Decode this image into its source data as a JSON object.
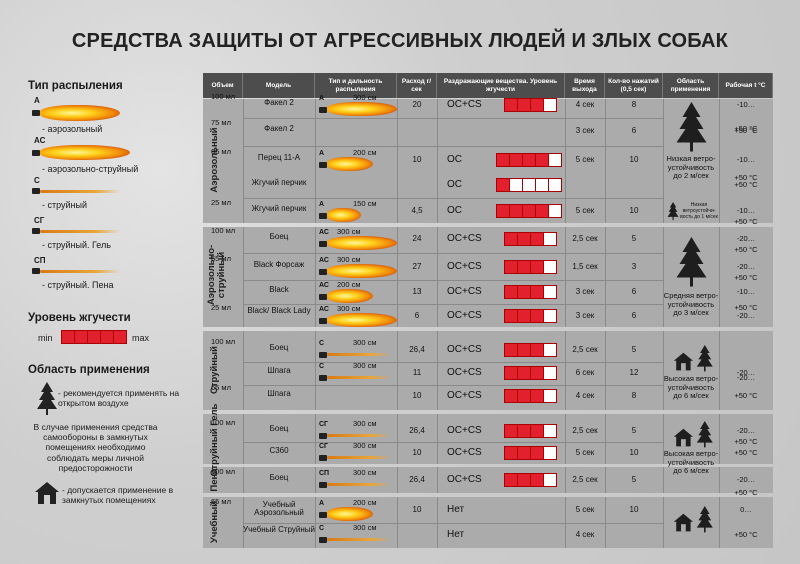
{
  "title": "СРЕДСТВА ЗАЩИТЫ ОТ АГРЕССИВНЫХ ЛЮДЕЙ И ЗЛЫХ СОБАК",
  "legend": {
    "spray_heading": "Тип распыления",
    "types": [
      {
        "code": "А",
        "label": "- аэрозольный"
      },
      {
        "code": "АС",
        "label": "- аэрозольно-струйный"
      },
      {
        "code": "С",
        "label": "- струйный"
      },
      {
        "code": "СГ",
        "label": "- струйный. Гель"
      },
      {
        "code": "СП",
        "label": "- струйный. Пена"
      }
    ],
    "intensity_heading": "Уровень жгучести",
    "min": "min",
    "max": "max",
    "area_heading": "Область применения",
    "outdoor": "- рекомендуется применять на открытом воздухе",
    "indoor_warning": "В случае применения средства самообороны в замкнутых помещениях необходимо соблюдать меры личной предосторожности",
    "indoor": "- допускается применение в замкнутых помещениях"
  },
  "headers": [
    "Объем",
    "Модель",
    "Тип и дальность распыления",
    "Расход г/сек",
    "Раздражающие вещества. Уровень жгучести",
    "Время выхода",
    "Кол-во нажатий (0,5 сек)",
    "Область применения",
    "Рабочая t °C"
  ],
  "groups": [
    {
      "name": "Аэрозольный"
    },
    {
      "name": "Аэрозольно-струйный"
    },
    {
      "name": "Струйный"
    },
    {
      "name": "Струйный Гель"
    },
    {
      "name": "Пена"
    },
    {
      "name": "Учебный"
    }
  ],
  "rows": [
    {
      "vol": "100 мл",
      "model": "Факел 2",
      "code": "А",
      "dist": "300 см",
      "rate": "20",
      "chem": "ОС+CS",
      "level": 3,
      "time": "4 сек",
      "presses": "8",
      "temp": "-10…"
    },
    {
      "vol": "75 мл",
      "model": "Факел 2",
      "code": "",
      "dist": "",
      "rate": "",
      "chem": "",
      "level": 0,
      "time": "3 сек",
      "presses": "6",
      "temp": "+50 °C"
    },
    {
      "vol": "65 мл",
      "model": "Перец 11-А",
      "code": "А",
      "dist": "200 см",
      "rate": "10",
      "chem": "ОС",
      "level": 4,
      "time": "5 сек",
      "presses": "10",
      "temp": "-10…"
    },
    {
      "vol": "",
      "model": "Жгучий перчик",
      "code": "",
      "dist": "",
      "rate": "",
      "chem": "ОС",
      "level": 1,
      "time": "",
      "presses": "",
      "temp": "+50 °C"
    },
    {
      "vol": "25 мл",
      "model": "Жгучий перчик",
      "code": "А",
      "dist": "150 см",
      "rate": "4,5",
      "chem": "ОС",
      "level": 4,
      "time": "5 сек",
      "presses": "10",
      "temp": "-10…"
    },
    {
      "vol": "100 мл",
      "model": "Боец",
      "code": "АС",
      "dist": "300 см",
      "rate": "24",
      "chem": "ОС+CS",
      "level": 3,
      "time": "2,5 сек",
      "presses": "5",
      "temp": "-20…"
    },
    {
      "vol": "65 мл",
      "model": "Black Форсаж",
      "code": "АС",
      "dist": "300 см",
      "rate": "27",
      "chem": "ОС+CS",
      "level": 3,
      "time": "1,5 сек",
      "presses": "3",
      "temp": "-20…"
    },
    {
      "vol": "",
      "model": "Black",
      "code": "АС",
      "dist": "200 см",
      "rate": "13",
      "chem": "ОС+CS",
      "level": 3,
      "time": "3 сек",
      "presses": "6",
      "temp": "-10…"
    },
    {
      "vol": "25 мл",
      "model": "Black/ Black Lady",
      "code": "АС",
      "dist": "300 см",
      "rate": "6",
      "chem": "ОС+CS",
      "level": 3,
      "time": "3 сек",
      "presses": "6",
      "temp": "-20…"
    },
    {
      "vol": "100 мл",
      "model": "Боец",
      "code": "С",
      "dist": "300 см",
      "rate": "26,4",
      "chem": "ОС+CS",
      "level": 3,
      "time": "2,5 сек",
      "presses": "5",
      "temp": ""
    },
    {
      "vol": "",
      "model": "Шпага",
      "code": "С",
      "dist": "300 см",
      "rate": "11",
      "chem": "ОС+CS",
      "level": 3,
      "time": "6 сек",
      "presses": "12",
      "temp": "-20…"
    },
    {
      "vol": "65 мл",
      "model": "Шпага",
      "code": "",
      "dist": "",
      "rate": "10",
      "chem": "ОС+CS",
      "level": 3,
      "time": "4 сек",
      "presses": "8",
      "temp": "+50 °C"
    },
    {
      "vol": "100 мл",
      "model": "Боец",
      "code": "СГ",
      "dist": "300 см",
      "rate": "26,4",
      "chem": "ОС+CS",
      "level": 3,
      "time": "2,5 сек",
      "presses": "5",
      "temp": "-20…"
    },
    {
      "vol": "",
      "model": "С360",
      "code": "СГ",
      "dist": "300 см",
      "rate": "10",
      "chem": "ОС+CS",
      "level": 3,
      "time": "5 сек",
      "presses": "10",
      "temp": "+50 °C"
    },
    {
      "vol": "100 мл",
      "model": "Боец",
      "code": "СП",
      "dist": "300 см",
      "rate": "26,4",
      "chem": "ОС+CS",
      "level": 3,
      "time": "2,5 сек",
      "presses": "5",
      "temp": "-20…"
    },
    {
      "vol": "65 мл",
      "model": "Учебный Аэрозольный",
      "code": "А",
      "dist": "200 см",
      "rate": "10",
      "chem": "Нет",
      "level": 0,
      "time": "5 сек",
      "presses": "10",
      "temp": "0…"
    },
    {
      "vol": "",
      "model": "Учебный Струйный",
      "code": "С",
      "dist": "300 см",
      "rate": "",
      "chem": "Нет",
      "level": 0,
      "time": "4 сек",
      "presses": "",
      "temp": "+50 °C"
    }
  ],
  "area": {
    "a1": "Низкая ветро-устойчивость до 2 м/сек",
    "a1b": "Низкая ветроустойчи-вость до 1 м/сек",
    "a2": "Средняя ветро-устойчивость до 3 м/сек",
    "a3": "Высокая ветро-устойчивость до 6 м/сек",
    "a4": "Высокая ветро-устойчивость до 6 м/сек"
  },
  "temps": {
    "t1": "+50 °C",
    "t2": "+50 °C",
    "t3": "+50 °C",
    "t4": "+50 °C",
    "t5": "+50 °C",
    "t6": "+50 °C",
    "t7": "-20…",
    "t8": "+50 °C",
    "t9": "+50 °C"
  }
}
